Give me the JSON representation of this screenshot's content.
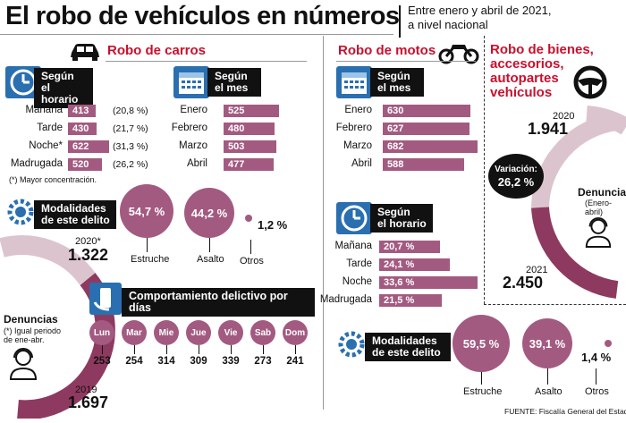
{
  "header": {
    "title": "El robo de vehículos en números",
    "subtitle_line1": "Entre enero y abril de 2021,",
    "subtitle_line2": "a nivel nacional"
  },
  "carros": {
    "title": "Robo de carros",
    "horario": {
      "heading1": "Según",
      "heading2": "el horario",
      "rows": [
        {
          "label": "Mañana",
          "value": "413",
          "value_num": 413,
          "pct": "(20,8 %)"
        },
        {
          "label": "Tarde",
          "value": "430",
          "value_num": 430,
          "pct": "(21,7 %)"
        },
        {
          "label": "Noche*",
          "value": "622",
          "value_num": 622,
          "pct": "(31,3 %)"
        },
        {
          "label": "Madrugada",
          "value": "520",
          "value_num": 520,
          "pct": "(26,2 %)"
        }
      ],
      "footnote": "(*) Mayor concentración."
    },
    "mes": {
      "heading1": "Según",
      "heading2": "el mes",
      "rows": [
        {
          "label": "Enero",
          "value": "525",
          "value_num": 525
        },
        {
          "label": "Febrero",
          "value": "480",
          "value_num": 480
        },
        {
          "label": "Marzo",
          "value": "503",
          "value_num": 503
        },
        {
          "label": "Abril",
          "value": "477",
          "value_num": 477
        }
      ]
    },
    "modalidades": {
      "heading1": "Modalidades",
      "heading2": "de este delito",
      "items": [
        {
          "value": "54,7 %",
          "label": "Estruche"
        },
        {
          "value": "44,2 %",
          "label": "Asalto"
        },
        {
          "value": "1,2 %",
          "label": "Otros"
        }
      ]
    },
    "denuncias": {
      "label": "Denuncias",
      "note1": "(*) Igual periodo",
      "note2": "de ene-abr.",
      "y2020_label": "2020*",
      "y2020_value": "1.322",
      "y2019_label": "2019",
      "y2019_value": "1.697"
    },
    "dias": {
      "heading": "Comportamiento delictivo por días",
      "days": [
        {
          "day": "Lun",
          "value": "253"
        },
        {
          "day": "Mar",
          "value": "254"
        },
        {
          "day": "Mie",
          "value": "314"
        },
        {
          "day": "Jue",
          "value": "309"
        },
        {
          "day": "Vie",
          "value": "339"
        },
        {
          "day": "Sab",
          "value": "273"
        },
        {
          "day": "Dom",
          "value": "241"
        }
      ]
    }
  },
  "motos": {
    "title": "Robo de motos",
    "mes": {
      "heading1": "Según",
      "heading2": "el mes",
      "rows": [
        {
          "label": "Enero",
          "value": "630",
          "value_num": 630
        },
        {
          "label": "Febrero",
          "value": "627",
          "value_num": 627
        },
        {
          "label": "Marzo",
          "value": "682",
          "value_num": 682
        },
        {
          "label": "Abril",
          "value": "588",
          "value_num": 588
        }
      ]
    },
    "horario": {
      "heading1": "Según",
      "heading2": "el horario",
      "rows": [
        {
          "label": "Mañana",
          "value": "20,7 %",
          "value_num": 20.7
        },
        {
          "label": "Tarde",
          "value": "24,1 %",
          "value_num": 24.1
        },
        {
          "label": "Noche",
          "value": "33,6 %",
          "value_num": 33.6
        },
        {
          "label": "Madrugada",
          "value": "21,5 %",
          "value_num": 21.5
        }
      ]
    },
    "modalidades": {
      "heading1": "Modalidades",
      "heading2": "de este delito",
      "items": [
        {
          "value": "59,5 %",
          "label": "Estruche"
        },
        {
          "value": "39,1 %",
          "label": "Asalto"
        },
        {
          "value": "1,4 %",
          "label": "Otros"
        }
      ]
    }
  },
  "bienes": {
    "title1": "Robo de bienes,",
    "title2": "accesorios,",
    "title3": "autopartes",
    "title4": "vehículos",
    "y2020_label": "2020",
    "y2020_value": "1.941",
    "variacion_label": "Variación:",
    "variacion_value": "26,2 %",
    "denuncias_label": "Denuncias",
    "denuncias_note": "(Enero-abril)",
    "y2021_label": "2021",
    "y2021_value": "2.450"
  },
  "footer": {
    "source": "FUENTE: Fiscalía General del Estado"
  },
  "colors": {
    "accent_red": "#c8102e",
    "bar_purple": "#a35a80",
    "ring_light": "#dcc4cf",
    "ring_dark": "#8e3a60",
    "icon_blue": "#2a6fb0"
  }
}
